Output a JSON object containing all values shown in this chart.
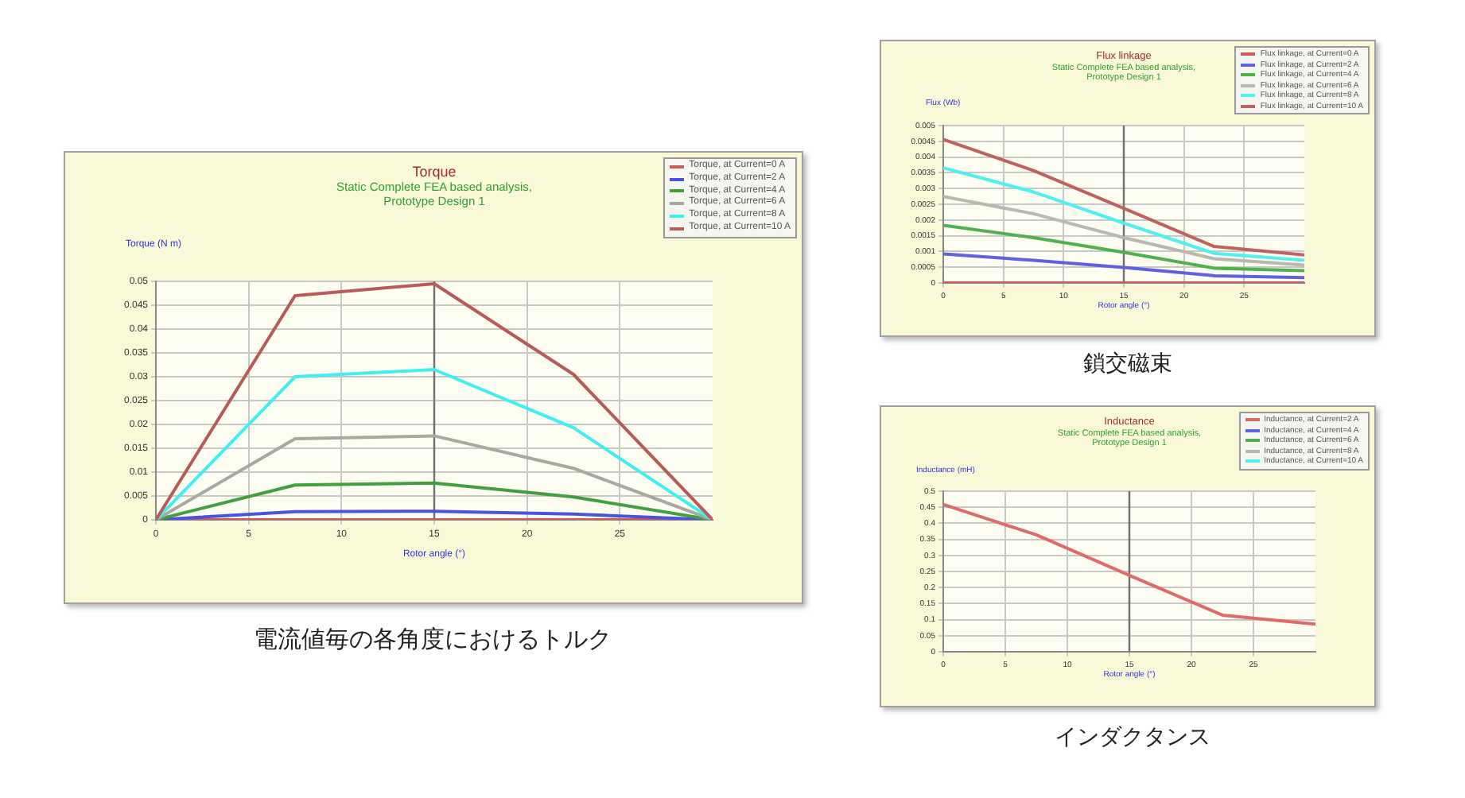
{
  "chart_data": [
    {
      "type": "line",
      "title": "Torque",
      "subtitle": "Static Complete FEA based analysis,\nPrototype Design 1",
      "xlabel": "Rotor angle (°)",
      "ylabel": "Torque (N m)",
      "annotations": [
        "電流値毎の各角度におけるトルク"
      ],
      "x": [
        0,
        7.5,
        15,
        22.5,
        30
      ],
      "xlim": [
        0,
        30
      ],
      "xticks": [
        0,
        5,
        10,
        15,
        20,
        25
      ],
      "ylim": [
        0,
        0.05
      ],
      "yticks": [
        0,
        0.005,
        0.01,
        0.015,
        0.02,
        0.025,
        0.03,
        0.035,
        0.04,
        0.045,
        0.05
      ],
      "grid": true,
      "legend": "top right",
      "marker": "none",
      "line_style": "solid",
      "ref_lines": [
        {
          "axis": "x",
          "value": 15,
          "color": "#707070"
        }
      ],
      "series": [
        {
          "name": "Torque, at Current=0 A",
          "color": "#d05a5a",
          "values": [
            0,
            0,
            0,
            0,
            0
          ]
        },
        {
          "name": "Torque, at Current=2 A",
          "color": "#5050e0",
          "values": [
            0,
            0.0017,
            0.0018,
            0.0012,
            0
          ]
        },
        {
          "name": "Torque, at Current=4 A",
          "color": "#40a040",
          "values": [
            0,
            0.0073,
            0.0077,
            0.0048,
            0
          ]
        },
        {
          "name": "Torque, at Current=6 A",
          "color": "#a8a8a0",
          "values": [
            0,
            0.017,
            0.0176,
            0.0108,
            0
          ]
        },
        {
          "name": "Torque, at Current=8 A",
          "color": "#40f0f0",
          "values": [
            0,
            0.03,
            0.0315,
            0.0193,
            0
          ]
        },
        {
          "name": "Torque, at Current=10 A",
          "color": "#b85a5a",
          "values": [
            0,
            0.047,
            0.0495,
            0.0305,
            0
          ]
        }
      ]
    },
    {
      "type": "line",
      "title": "Flux linkage",
      "subtitle": "Static Complete FEA based analysis,\nPrototype Design 1",
      "xlabel": "Rotor angle (°)",
      "ylabel": "Flux (Wb)",
      "annotations": [
        "鎖交磁束"
      ],
      "x": [
        0,
        7.5,
        15,
        22.5,
        30
      ],
      "xlim": [
        0,
        30
      ],
      "xticks": [
        0,
        5,
        10,
        15,
        20,
        25
      ],
      "ylim": [
        0,
        0.005
      ],
      "yticks": [
        0,
        0.0005,
        0.001,
        0.0015,
        0.002,
        0.0025,
        0.003,
        0.0035,
        0.004,
        0.0045,
        0.005
      ],
      "grid": true,
      "legend": "top right",
      "marker": "none",
      "line_style": "solid",
      "ref_lines": [
        {
          "axis": "x",
          "value": 15,
          "color": "#707070"
        }
      ],
      "series": [
        {
          "name": "Flux linkage, at Current=0 A",
          "color": "#d05a5a",
          "values": [
            0,
            0,
            0,
            0,
            0
          ]
        },
        {
          "name": "Flux linkage, at Current=2 A",
          "color": "#6060e0",
          "values": [
            0.00092,
            0.00072,
            0.00049,
            0.00023,
            0.00017
          ]
        },
        {
          "name": "Flux linkage, at Current=4 A",
          "color": "#50b050",
          "values": [
            0.00183,
            0.00144,
            0.00097,
            0.00047,
            0.00039
          ]
        },
        {
          "name": "Flux linkage, at Current=6 A",
          "color": "#b8b8b0",
          "values": [
            0.00275,
            0.0022,
            0.00144,
            0.00077,
            0.00057
          ]
        },
        {
          "name": "Flux linkage, at Current=8 A",
          "color": "#50f0f0",
          "values": [
            0.00366,
            0.00289,
            0.0019,
            0.00094,
            0.00072
          ]
        },
        {
          "name": "Flux linkage, at Current=10 A",
          "color": "#c06060",
          "values": [
            0.00456,
            0.00357,
            0.00237,
            0.00116,
            0.00089
          ]
        }
      ]
    },
    {
      "type": "line",
      "title": "Inductance",
      "subtitle": "Static Complete FEA based analysis,\nPrototype Design 1",
      "xlabel": "Rotor angle (°)",
      "ylabel": "Inductance (mH)",
      "annotations": [
        "インダクタンス"
      ],
      "x": [
        0,
        7.5,
        15,
        22.5,
        30
      ],
      "xlim": [
        0,
        30
      ],
      "xticks": [
        0,
        5,
        10,
        15,
        20,
        25
      ],
      "ylim": [
        0,
        0.5
      ],
      "yticks": [
        0,
        0.05,
        0.1,
        0.15,
        0.2,
        0.25,
        0.3,
        0.35,
        0.4,
        0.45,
        0.5
      ],
      "grid": true,
      "legend": "top right",
      "marker": "none",
      "line_style": "solid",
      "ref_lines": [
        {
          "axis": "x",
          "value": 15,
          "color": "#707070"
        }
      ],
      "series": [
        {
          "name": "Inductance, at Current=2 A",
          "color": "#e06a6a",
          "values": [
            0.459,
            0.364,
            0.238,
            0.114,
            0.086
          ]
        },
        {
          "name": "Inductance, at Current=4 A",
          "color": "#6060e0",
          "values": [
            null,
            null,
            null,
            null,
            null
          ]
        },
        {
          "name": "Inductance, at Current=6 A",
          "color": "#50b050",
          "values": [
            null,
            null,
            null,
            null,
            null
          ]
        },
        {
          "name": "Inductance, at Current=8 A",
          "color": "#b8b8b0",
          "values": [
            null,
            null,
            null,
            null,
            null
          ]
        },
        {
          "name": "Inductance, at Current=10 A",
          "color": "#50f0f0",
          "values": [
            null,
            null,
            null,
            null,
            null
          ]
        }
      ]
    }
  ]
}
